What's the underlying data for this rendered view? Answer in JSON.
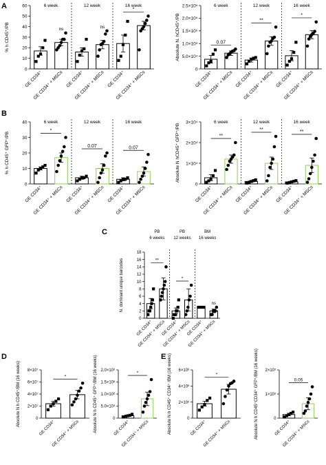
{
  "figure": {
    "panels": [
      "A",
      "B",
      "C",
      "D",
      "E"
    ]
  },
  "colors": {
    "black": "#000000",
    "green": "#8ed14f"
  },
  "chart_data": [
    {
      "id": "A1",
      "panel": "A",
      "type": "bar",
      "ylabel": "% h CD45⁺/PB",
      "yticks": [
        "0",
        "10",
        "20",
        "30",
        "40",
        "50",
        "60"
      ],
      "ylim": [
        0,
        60
      ],
      "scale": "linear",
      "categories": [
        "GE CD34⁺",
        "GE CD34⁺ + MSCs",
        "GE CD34⁺",
        "GE CD34⁺ + MSCs",
        "GE CD34⁺",
        "GE CD34⁺ + MSCs"
      ],
      "groups": [
        "6 week",
        "12 week",
        "16 week"
      ],
      "series": [
        {
          "values": [
            17,
            25,
            16,
            23,
            24,
            41
          ],
          "errors": [
            4,
            3,
            4,
            4,
            8,
            4
          ],
          "points": [
            [
              7,
              12,
              14,
              20,
              27
            ],
            [
              18,
              20,
              22,
              25,
              28,
              28,
              34
            ],
            [
              7,
              13,
              17,
              19,
              28
            ],
            [
              12,
              18,
              23,
              24,
              26,
              33,
              36
            ],
            [
              8,
              12,
              23,
              32,
              45
            ],
            [
              18,
              36,
              38,
              40,
              43,
              46,
              50
            ]
          ]
        }
      ],
      "bar_colors": [
        "#000000",
        "#000000",
        "#000000",
        "#000000",
        "#000000",
        "#000000"
      ],
      "annotations": [
        "ns",
        "ns",
        "*"
      ]
    },
    {
      "id": "A2",
      "panel": "A",
      "type": "bar",
      "ylabel": "Absolute N. hCD45⁺/PB",
      "yticks": [
        "0",
        "5.0×10⁴",
        "1.0×10⁵",
        "1.5×10⁵",
        "2.0×10⁵",
        "2.5×10⁵"
      ],
      "ylim": [
        0,
        250000
      ],
      "scale": "linear",
      "categories": [
        "GE CD34⁺",
        "GE CD34⁺ + MSCs",
        "GE CD34⁺",
        "GE CD34⁺ + MSCs",
        "GE CD34⁺",
        "GE CD34⁺ + MSCs"
      ],
      "groups": [
        "6 week",
        "12 week",
        "16 week"
      ],
      "series": [
        {
          "values": [
            38000,
            62000,
            35000,
            110000,
            52000,
            135000
          ],
          "errors": [
            15000,
            9000,
            8000,
            17000,
            20000,
            16000
          ],
          "points": [
            [
              12000,
              24000,
              30000,
              58000,
              75000
            ],
            [
              45000,
              55000,
              60000,
              66000,
              70000,
              72000,
              78000
            ],
            [
              20000,
              30000,
              38000,
              42000,
              45000
            ],
            [
              60000,
              90000,
              105000,
              110000,
              120000,
              125000,
              165000
            ],
            [
              15000,
              30000,
              40000,
              65000,
              105000
            ],
            [
              90000,
              118000,
              128000,
              135000,
              140000,
              148000,
              185000
            ]
          ]
        }
      ],
      "bar_colors": [
        "#000000",
        "#000000",
        "#000000",
        "#000000",
        "#000000",
        "#000000"
      ],
      "annotations": [
        "0.07",
        "**",
        "*"
      ]
    },
    {
      "id": "B1",
      "panel": "B",
      "type": "bar",
      "ylabel": "% h CD45⁺ GFP⁺/PB",
      "yticks": [
        "0",
        "10",
        "20",
        "30",
        "40"
      ],
      "ylim": [
        0,
        40
      ],
      "scale": "linear",
      "categories": [
        "GE CD34⁺",
        "GE CD34⁺ + MSCs",
        "GE CD34⁺",
        "GE CD34⁺ + MSCs",
        "GE CD34⁺",
        "GE CD34⁺ + MSCs"
      ],
      "groups": [
        "6 week",
        "12 week",
        "16 week"
      ],
      "series": [
        {
          "values": [
            10,
            17,
            4,
            10,
            3,
            8
          ],
          "errors": [
            1,
            3,
            1,
            3,
            1,
            3
          ],
          "points": [
            [
              7,
              9,
              10,
              11,
              12
            ],
            [
              8,
              12,
              15,
              18,
              21,
              24,
              30
            ],
            [
              2,
              3,
              4,
              4,
              5
            ],
            [
              1,
              4,
              7,
              9,
              12,
              18,
              20
            ],
            [
              1,
              2,
              3,
              3,
              4
            ],
            [
              1,
              3,
              5,
              7,
              10,
              14,
              19
            ]
          ]
        }
      ],
      "bar_colors": [
        "#000000",
        "#8ed14f",
        "#000000",
        "#8ed14f",
        "#000000",
        "#8ed14f"
      ],
      "annotations": [
        "*",
        "0.07",
        "0.07"
      ]
    },
    {
      "id": "B2",
      "panel": "B",
      "type": "bar",
      "ylabel": "Absolute N hCD45⁺ GFP⁺/PB",
      "yticks": [
        "0",
        "1×10⁴",
        "2×10⁴",
        "3×10⁴"
      ],
      "ylim": [
        0,
        30000
      ],
      "scale": "linear",
      "categories": [
        "GE CD34⁺",
        "GE CD34⁺ + MSCs",
        "GE CD34⁺",
        "GE CD34⁺ + MSCs",
        "GE CD34⁺",
        "GE CD34⁺ + MSCs"
      ],
      "groups": [
        "6 week",
        "12 week",
        "16 week"
      ],
      "series": [
        {
          "values": [
            3000,
            12000,
            1200,
            10000,
            1000,
            9000
          ],
          "errors": [
            1500,
            2000,
            400,
            3000,
            300,
            3500
          ],
          "points": [
            [
              800,
              1500,
              2500,
              4000,
              6500
            ],
            [
              7000,
              9000,
              11000,
              12000,
              13000,
              14000,
              20000
            ],
            [
              400,
              800,
              1200,
              1600,
              2000
            ],
            [
              1500,
              4000,
              8000,
              10000,
              12000,
              18000,
              23000
            ],
            [
              400,
              700,
              1000,
              1300,
              1600
            ],
            [
              800,
              2500,
              5000,
              8000,
              11000,
              14000,
              22000
            ]
          ]
        }
      ],
      "bar_colors": [
        "#000000",
        "#8ed14f",
        "#000000",
        "#8ed14f",
        "#000000",
        "#8ed14f"
      ],
      "annotations": [
        "**",
        "**",
        "**"
      ]
    },
    {
      "id": "C",
      "panel": "C",
      "type": "bar",
      "ylabel": "N. dominant unique barcodes",
      "yticks": [
        "0",
        "2",
        "4",
        "6",
        "8",
        "10",
        "12",
        "14",
        "16",
        "18"
      ],
      "ylim": [
        0,
        18
      ],
      "scale": "linear",
      "categories": [
        "GE CD34⁺",
        "GE CD34⁺ + MSCs",
        "GE CD34⁺",
        "GE CD34⁺ + MSCs",
        "GE CD34⁺",
        "GE CD34⁺ + MSCs"
      ],
      "groups": [
        "PB 6 weeks",
        "PB 12 weeks",
        "BM 16 weeks"
      ],
      "series": [
        {
          "values": [
            4,
            8,
            2,
            5,
            3,
            2
          ],
          "errors": [
            1.4,
            3,
            0.8,
            3,
            0,
            0.5
          ],
          "points": [
            [
              1,
              2,
              2,
              3,
              4,
              5,
              8
            ],
            [
              5,
              6,
              7,
              8,
              9,
              10,
              14
            ],
            [
              0,
              1,
              1,
              1,
              2,
              2,
              3,
              5
            ],
            [
              1,
              2,
              3,
              5,
              6,
              9
            ],
            [
              3,
              3,
              3
            ],
            [
              1,
              1,
              2,
              2,
              2,
              3
            ]
          ]
        }
      ],
      "bar_colors": [
        "#000000",
        "#000000",
        "#000000",
        "#000000",
        "#000000",
        "#000000"
      ],
      "annotations": [
        "**",
        "*",
        "ns"
      ]
    },
    {
      "id": "D1",
      "panel": "D",
      "type": "bar",
      "ylabel": "Absolute N h CD45⁺/BM (16 weeks)",
      "yticks": [
        "0",
        "2×10⁷",
        "4×10⁷",
        "6×10⁷",
        "8×10⁷"
      ],
      "ylim": [
        0,
        80000000
      ],
      "scale": "linear",
      "categories": [
        "GE CD34⁺",
        "GE CD34⁺ + MSCs"
      ],
      "series": [
        {
          "values": [
            24000000,
            39000000
          ],
          "errors": [
            4000000,
            7000000
          ],
          "points": [
            [
              14000000,
              20000000,
              24000000,
              28000000,
              32000000
            ],
            [
              22000000,
              27000000,
              32000000,
              38000000,
              45000000,
              50000000,
              58000000
            ]
          ]
        }
      ],
      "bar_colors": [
        "#000000",
        "#000000"
      ],
      "annotations": [
        "*"
      ]
    },
    {
      "id": "D2",
      "panel": "D",
      "type": "bar",
      "ylabel": "Absolute N h CD45⁺ GFP⁺/BM (16 weeks)",
      "yticks": [
        "0",
        "5.0×10⁵",
        "1.0×10⁶",
        "1.5×10⁶",
        "2.0×10⁶"
      ],
      "ylim": [
        0,
        2000000
      ],
      "scale": "linear",
      "categories": [
        "GE CD34⁺",
        "GE CD34⁺ + MSCs"
      ],
      "series": [
        {
          "values": [
            100000,
            800000
          ],
          "errors": [
            30000,
            280000
          ],
          "points": [
            [
              50000,
              80000,
              100000,
              120000,
              160000
            ],
            [
              250000,
              500000,
              650000,
              800000,
              950000,
              1100000,
              1600000
            ]
          ]
        }
      ],
      "bar_colors": [
        "#000000",
        "#8ed14f"
      ],
      "annotations": [
        "*"
      ]
    },
    {
      "id": "E1",
      "panel": "E",
      "type": "bar",
      "ylabel": "Absolute N h CD45⁺ CD34⁺ /BM (16 weeks)",
      "yticks": [
        "0",
        "2×10⁶",
        "4×10⁶",
        "6×10⁶"
      ],
      "ylim": [
        0,
        6000000
      ],
      "scale": "linear",
      "categories": [
        "GE CD34⁺",
        "GE CD34⁺ + MSCs"
      ],
      "series": [
        {
          "values": [
            1800000,
            3600000
          ],
          "errors": [
            300000,
            600000
          ],
          "points": [
            [
              1000000,
              1400000,
              1700000,
              2200000,
              2500000
            ],
            [
              1800000,
              2700000,
              3500000,
              4000000,
              4300000,
              4400000,
              4600000
            ]
          ]
        }
      ],
      "bar_colors": [
        "#000000",
        "#000000"
      ],
      "annotations": [
        "*"
      ]
    },
    {
      "id": "E2",
      "panel": "E",
      "type": "bar",
      "ylabel": "Absolute N h CD45⁺CD34⁺ GFP⁺/BM (16 weeks)",
      "yticks": [
        "0",
        "1×10⁵",
        "2×10⁵"
      ],
      "ylim": [
        0,
        200000
      ],
      "scale": "linear",
      "categories": [
        "GE CD34⁺",
        "GE CD34⁺ + MSCs"
      ],
      "series": [
        {
          "values": [
            15000,
            60000
          ],
          "errors": [
            5000,
            25000
          ],
          "points": [
            [
              5000,
              10000,
              15000,
              20000,
              25000
            ],
            [
              20000,
              30000,
              50000,
              65000,
              80000,
              100000,
              130000
            ]
          ]
        }
      ],
      "bar_colors": [
        "#000000",
        "#8ed14f"
      ],
      "annotations": [
        "0.05"
      ]
    }
  ]
}
